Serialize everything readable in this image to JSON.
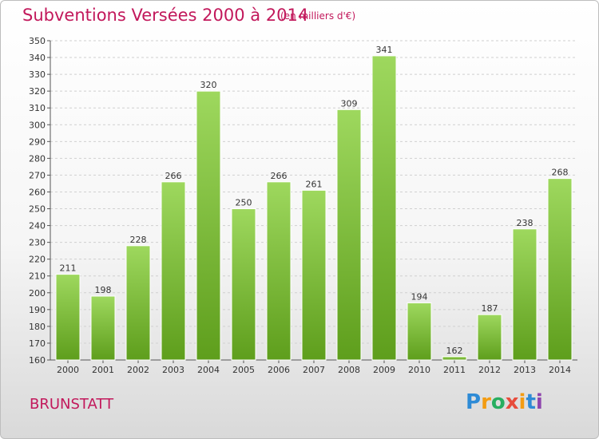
{
  "header": {
    "title": "Subventions Versées 2000 à 2014",
    "unit": "(en milliers d'€)"
  },
  "footer": {
    "city": "BRUNSTATT",
    "logo": {
      "letters": [
        "P",
        "r",
        "o",
        "x",
        "i",
        "t",
        "i"
      ],
      "colors": [
        "#2e8bd6",
        "#f39c12",
        "#27ae60",
        "#e74c3c",
        "#f39c12",
        "#2e8bd6",
        "#8e44ad"
      ]
    }
  },
  "chart_data": {
    "type": "bar",
    "title": "Subventions Versées 2000 à 2014",
    "unit": "(en milliers d'€)",
    "categories": [
      "2000",
      "2001",
      "2002",
      "2003",
      "2004",
      "2005",
      "2006",
      "2007",
      "2008",
      "2009",
      "2010",
      "2011",
      "2012",
      "2013",
      "2014"
    ],
    "values": [
      211,
      198,
      228,
      266,
      320,
      250,
      266,
      261,
      309,
      341,
      194,
      162,
      187,
      238,
      268
    ],
    "ylim": [
      160,
      350
    ],
    "ytick_step": 10,
    "grid": true,
    "bar_color": "#7cc444"
  }
}
